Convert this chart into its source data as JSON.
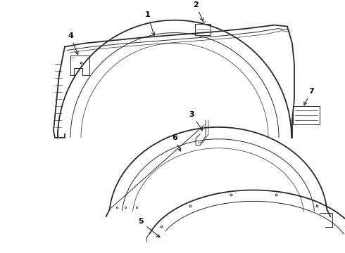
{
  "background_color": "#ffffff",
  "line_color": "#2a2a2a",
  "label_color": "#000000",
  "figsize": [
    4.9,
    3.6
  ],
  "dpi": 100,
  "lw_main": 1.3,
  "lw_thin": 0.7,
  "lw_inner": 0.5
}
